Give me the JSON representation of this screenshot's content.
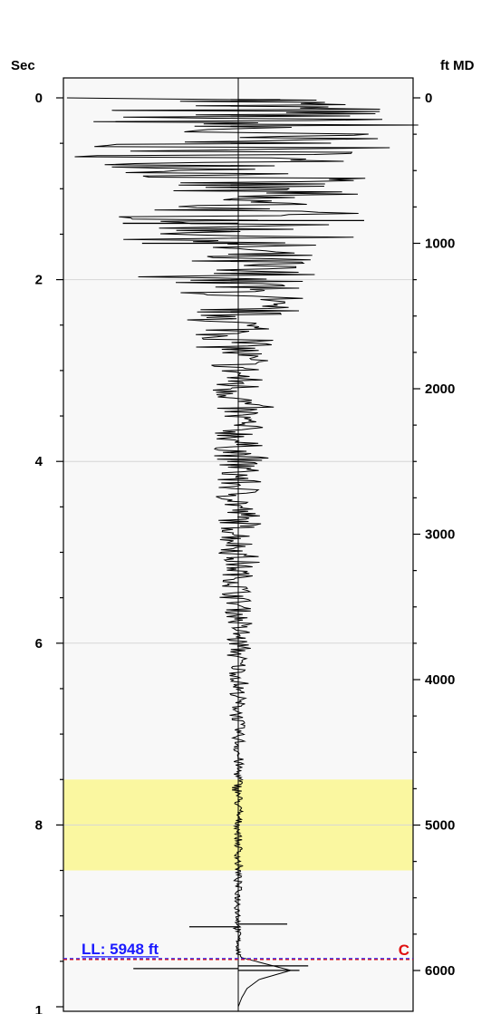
{
  "chart_data": {
    "type": "line",
    "left_axis": {
      "title": "Sec",
      "range": [
        0,
        10
      ],
      "ticks": [
        0,
        2,
        4,
        6,
        8
      ],
      "tick_labels": [
        "0",
        "2",
        "4",
        "6",
        "8"
      ],
      "bottom_label": "1",
      "gridlines_at": [
        2,
        4,
        6,
        8
      ]
    },
    "right_axis": {
      "title": "ft MD",
      "range": [
        0,
        6150
      ],
      "ticks": [
        0,
        1000,
        2000,
        3000,
        4000,
        5000,
        6000
      ],
      "tick_labels": [
        "0",
        "1000",
        "2000",
        "3000",
        "4000",
        "5000",
        "6000"
      ]
    },
    "highlight_band": {
      "from_sec": 7.5,
      "to_sec": 8.5,
      "color": "#faf7a0"
    },
    "baseline_sec": 9.75,
    "annotations": [
      {
        "text": "LL: 5948 ft",
        "color": "#1a1aff",
        "sec": 9.47,
        "line_style": "dashed"
      },
      {
        "text": "C",
        "color": "#e01010",
        "sec": 9.48,
        "line_style": "dashed"
      }
    ],
    "series": [
      {
        "style": "wiggle",
        "color": "#000000",
        "envelope_sec": [
          0.0,
          0.5,
          1.0,
          1.5,
          2.0,
          2.5,
          3.0,
          4.0,
          5.0,
          6.0,
          7.0,
          8.0,
          8.9,
          9.3
        ],
        "envelope_half_width": [
          0.98,
          0.9,
          0.62,
          0.5,
          0.42,
          0.22,
          0.16,
          0.14,
          0.1,
          0.06,
          0.035,
          0.022,
          0.02,
          0.02
        ],
        "spikes": [
          {
            "sec": 0.02,
            "amp": 0.24
          },
          {
            "sec": 1.35,
            "amp": 0.72
          },
          {
            "sec": 1.38,
            "amp": -0.66
          },
          {
            "sec": 1.6,
            "amp": -0.55
          },
          {
            "sec": 9.09,
            "amp": 0.28
          },
          {
            "sec": 9.12,
            "amp": -0.28
          },
          {
            "sec": 9.55,
            "amp": 0.4
          },
          {
            "sec": 9.58,
            "amp": -0.6
          },
          {
            "sec": 9.6,
            "amp": 0.35
          }
        ],
        "tail": {
          "sec": [
            9.15,
            9.3,
            9.45,
            9.6,
            9.7,
            9.8,
            9.9,
            10.0
          ],
          "amp": [
            0.0,
            0.0,
            0.0,
            0.3,
            0.12,
            0.05,
            0.02,
            0.0
          ]
        }
      }
    ]
  }
}
